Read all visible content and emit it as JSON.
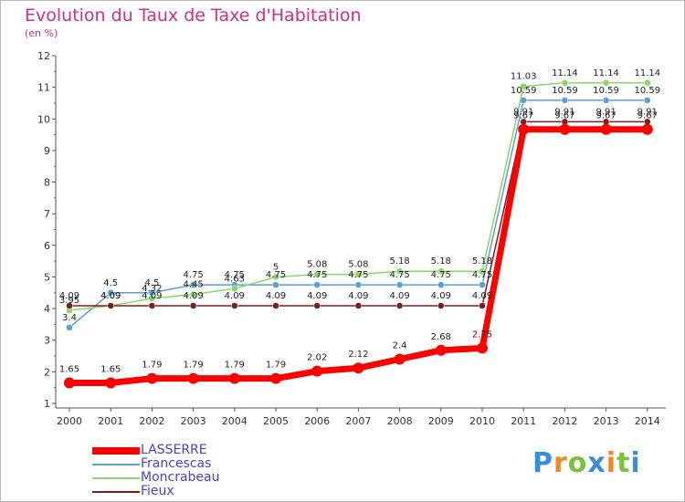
{
  "chart_data": {
    "type": "line",
    "title": "Evolution du Taux de Taxe d'Habitation",
    "subtitle": "(en %)",
    "xlabel": "",
    "ylabel": "",
    "ylim": [
      1,
      12
    ],
    "y_ticks": [
      "1",
      "2",
      "3",
      "4",
      "5",
      "6",
      "7",
      "8",
      "9",
      "10",
      "11",
      "12"
    ],
    "categories": [
      "2000",
      "2001",
      "2002",
      "2003",
      "2004",
      "2005",
      "2006",
      "2007",
      "2008",
      "2009",
      "2010",
      "2011",
      "2012",
      "2013",
      "2014"
    ],
    "series": [
      {
        "name": "LASSERRE",
        "color": "#ff0000",
        "values": [
          1.65,
          1.65,
          1.79,
          1.79,
          1.79,
          1.79,
          2.02,
          2.12,
          2.4,
          2.68,
          2.75,
          9.67,
          9.67,
          9.67,
          9.67
        ],
        "labels": [
          "1.65",
          "1.65",
          "1.79",
          "1.79",
          "1.79",
          "1.79",
          "2.02",
          "2.12",
          "2.4",
          "2.68",
          "2.75",
          "9.67",
          "9.67",
          "9.67",
          "9.67"
        ]
      },
      {
        "name": "Francescas",
        "color": "#5c9fd6",
        "values": [
          3.4,
          4.5,
          4.5,
          4.75,
          4.75,
          4.75,
          4.75,
          4.75,
          4.75,
          4.75,
          4.75,
          10.59,
          10.59,
          10.59,
          10.59
        ],
        "labels": [
          "3.4",
          "4.5",
          "4.5",
          "4.75",
          "4.75",
          "4.75",
          "4.75",
          "4.75",
          "4.75",
          "4.75",
          "4.75",
          "10.59",
          "10.59",
          "10.59",
          "10.59"
        ]
      },
      {
        "name": "Moncrabeau",
        "color": "#8ad66a",
        "values": [
          3.95,
          4.09,
          4.32,
          4.45,
          4.63,
          5.0,
          5.08,
          5.08,
          5.18,
          5.18,
          5.18,
          11.03,
          11.14,
          11.14,
          11.14
        ],
        "labels": [
          "3.95",
          "4.09",
          "4.32",
          "4.45",
          "4.63",
          "5",
          "5.08",
          "5.08",
          "5.18",
          "5.18",
          "5.18",
          "11.03",
          "11.14",
          "11.14",
          "11.14"
        ]
      },
      {
        "name": "Fieux",
        "color": "#7a1f1f",
        "values": [
          4.09,
          4.09,
          4.09,
          4.09,
          4.09,
          4.09,
          4.09,
          4.09,
          4.09,
          4.09,
          4.09,
          9.91,
          9.91,
          9.91,
          9.91
        ],
        "labels": [
          "4.09",
          "4.09",
          "4.09",
          "4.09",
          "4.09",
          "4.09",
          "4.09",
          "4.09",
          "4.09",
          "4.09",
          "4.09",
          "9.91",
          "9.91",
          "9.91",
          "9.91"
        ]
      }
    ],
    "legend_position": "bottom-left"
  },
  "logo": {
    "letters": [
      "P",
      "r",
      "o",
      "x",
      "i",
      "t",
      "i"
    ],
    "colors": [
      "#3a8dd8",
      "#f08a1c",
      "#7ac142",
      "#3a8dd8",
      "#f08a1c",
      "#7ac142",
      "#3a8dd8"
    ]
  }
}
